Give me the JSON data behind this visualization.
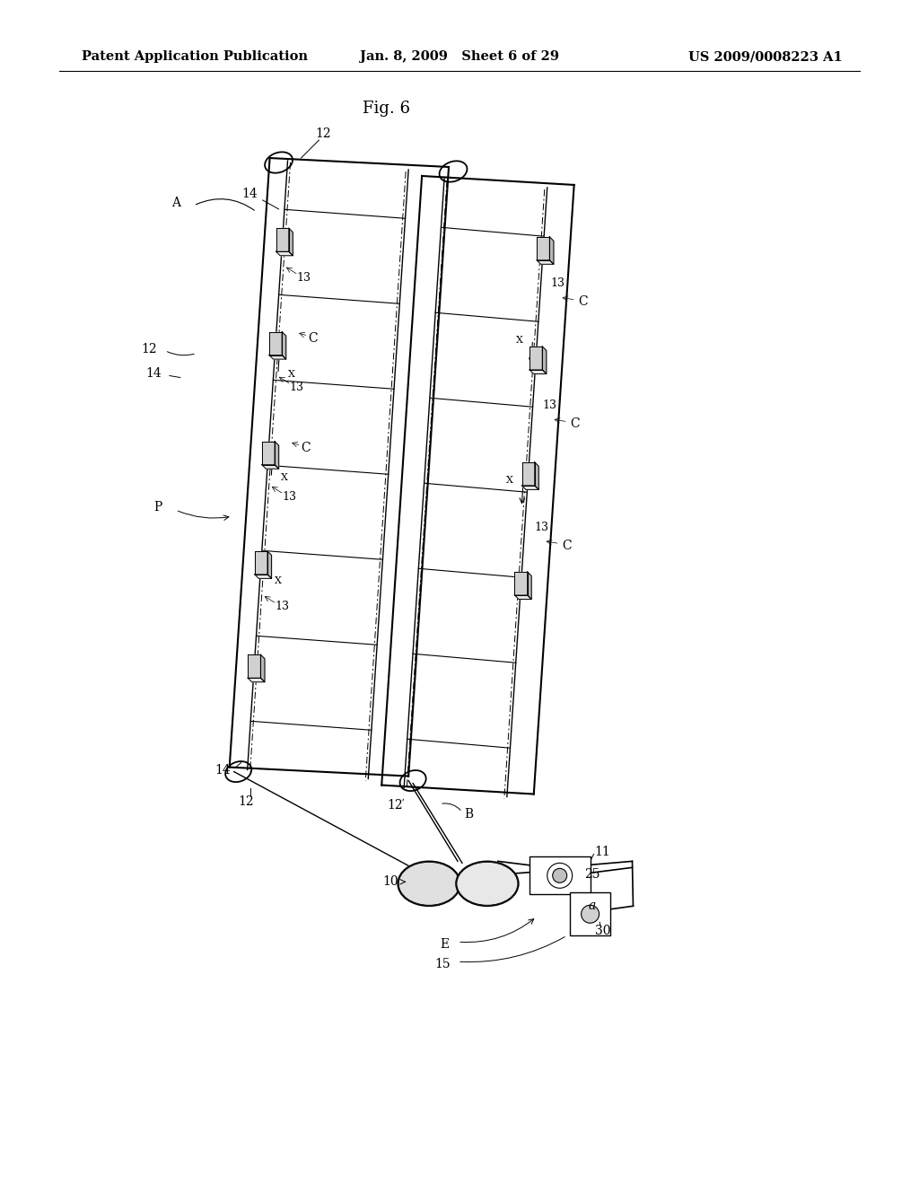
{
  "bg_color": "#ffffff",
  "header_left": "Patent Application Publication",
  "header_mid": "Jan. 8, 2009   Sheet 6 of 29",
  "header_right": "US 2009/0008223 A1",
  "fig_label": "Fig. 6",
  "title_fontsize": 13,
  "header_fontsize": 10.5,
  "label_fontsize": 10
}
